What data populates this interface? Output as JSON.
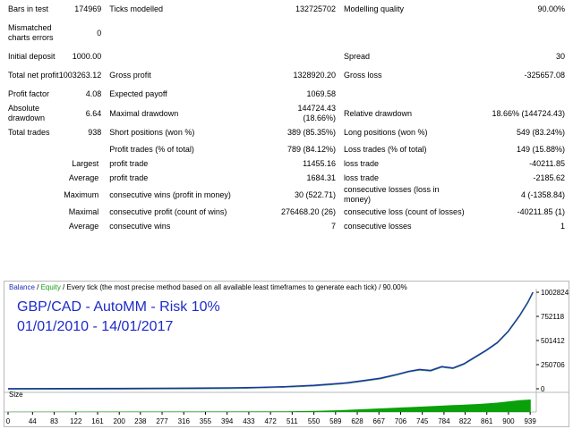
{
  "rows": [
    [
      "Bars in test",
      "174969",
      "Ticks modelled",
      "132725702",
      "Modelling quality",
      "90.00%"
    ],
    [
      "Mismatched charts errors",
      "0",
      "",
      "",
      "",
      ""
    ],
    [
      "Initial deposit",
      "1000.00",
      "",
      "",
      "Spread",
      "30"
    ],
    [
      "Total net profit",
      "1003263.12",
      "Gross profit",
      "1328920.20",
      "Gross loss",
      "-325657.08"
    ],
    [
      "Profit factor",
      "4.08",
      "Expected payoff",
      "1069.58",
      "",
      ""
    ],
    [
      "Absolute drawdown",
      "6.64",
      "Maximal drawdown",
      "144724.43 (18.66%)",
      "Relative drawdown",
      "18.66% (144724.43)"
    ],
    [
      "Total trades",
      "938",
      "Short positions (won %)",
      "389 (85.35%)",
      "Long positions (won %)",
      "549 (83.24%)"
    ],
    [
      "",
      "",
      "Profit trades (% of total)",
      "789 (84.12%)",
      "Loss trades (% of total)",
      "149 (15.88%)"
    ],
    [
      "",
      "Largest",
      "profit trade",
      "11455.16",
      "loss trade",
      "-40211.85"
    ],
    [
      "",
      "Average",
      "profit trade",
      "1684.31",
      "loss trade",
      "-2185.62"
    ],
    [
      "",
      "Maximum",
      "consecutive wins (profit in money)",
      "30 (522.71)",
      "consecutive losses (loss in money)",
      "4 (-1358.84)"
    ],
    [
      "",
      "Maximal",
      "consecutive profit (count of wins)",
      "276468.20 (26)",
      "consecutive loss (count of losses)",
      "-40211.85 (1)"
    ],
    [
      "",
      "Average",
      "consecutive wins",
      "7",
      "consecutive losses",
      "1"
    ]
  ],
  "chart": {
    "legend_balance": "Balance",
    "legend_sep": " / ",
    "legend_equity": "Equity",
    "legend_desc": " / Every tick (the most precise method based on all available least timeframes to generate each tick) / 90.00%",
    "overlay_line1": "GBP/CAD - AutoMM - Risk 10%",
    "overlay_line2": "01/01/2010 - 14/01/2017",
    "size_label": "Size",
    "colors": {
      "balance": "#1f2fb0",
      "equity": "#18a018",
      "volume": "#0aa00a",
      "overlay": "#1d2bc8"
    }
  },
  "chart_data": {
    "type": "line",
    "title": "",
    "yticks": [
      0,
      250706,
      501412,
      752118,
      1002824
    ],
    "ylim": [
      0,
      1002824
    ],
    "xticks": [
      0,
      44,
      83,
      122,
      161,
      200,
      238,
      277,
      316,
      355,
      394,
      433,
      472,
      511,
      550,
      589,
      628,
      667,
      706,
      745,
      784,
      822,
      861,
      900,
      939
    ],
    "xlim": [
      0,
      950
    ],
    "series": [
      {
        "name": "Balance",
        "x": [
          0,
          100,
          200,
          300,
          400,
          450,
          500,
          550,
          580,
          610,
          640,
          670,
          700,
          720,
          740,
          760,
          780,
          800,
          820,
          840,
          860,
          880,
          900,
          920,
          935,
          944
        ],
        "y": [
          1000,
          1500,
          3000,
          5000,
          9000,
          14000,
          22000,
          35000,
          48000,
          62000,
          85000,
          110000,
          150000,
          180000,
          200000,
          190000,
          230000,
          215000,
          260000,
          330000,
          400000,
          480000,
          600000,
          760000,
          900000,
          1002824
        ]
      }
    ],
    "volume": {
      "x": [
        0,
        500,
        560,
        600,
        650,
        700,
        750,
        800,
        850,
        880,
        900,
        920,
        940
      ],
      "y": [
        0.02,
        0.05,
        0.1,
        0.15,
        0.25,
        0.35,
        0.45,
        0.55,
        0.65,
        0.75,
        0.85,
        0.95,
        1.0
      ]
    }
  }
}
